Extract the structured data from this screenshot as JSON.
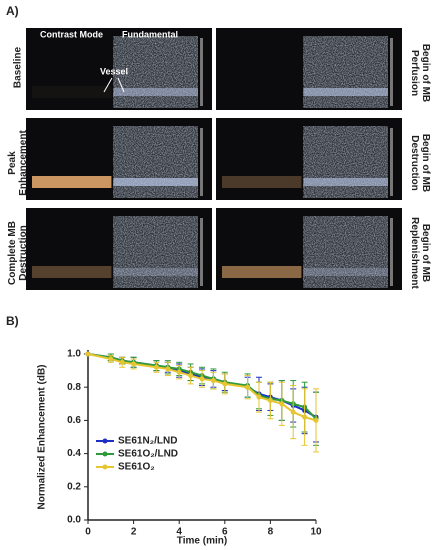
{
  "panel_a": {
    "label": "A)",
    "headers": [
      "Contrast Mode",
      "Fundamental"
    ],
    "annotation": "Vessel",
    "rows": [
      {
        "left": "Baseline",
        "right": "Begin of MB Perfusion"
      },
      {
        "left": "Peak Enhancement",
        "right": "Begin of MB Destruction"
      },
      {
        "left": "Complete MB Destruction",
        "right": "Begin of MB Replenishment"
      }
    ]
  },
  "chart_data": {
    "type": "line",
    "label": "B)",
    "x_label": "Time (min)",
    "y_label": "Normalized Enhancement (dB)",
    "x": [
      0,
      1,
      1.5,
      2,
      3,
      3.5,
      4,
      4.5,
      5,
      5.5,
      6,
      7,
      7.5,
      8,
      8.5,
      9,
      9.5,
      10
    ],
    "series": [
      {
        "name": "SE61N₂/LND",
        "color": "#1c2fc4",
        "values": [
          1.0,
          0.98,
          0.96,
          0.95,
          0.93,
          0.92,
          0.9,
          0.88,
          0.86,
          0.85,
          0.83,
          0.8,
          0.76,
          0.74,
          0.72,
          0.69,
          0.66,
          0.62
        ],
        "errors": [
          0,
          0.02,
          0.02,
          0.03,
          0.03,
          0.03,
          0.04,
          0.04,
          0.05,
          0.05,
          0.05,
          0.06,
          0.1,
          0.08,
          0.12,
          0.1,
          0.14,
          0.15
        ]
      },
      {
        "name": "SE61O₂/LND",
        "color": "#2e9a3a",
        "values": [
          1.0,
          0.98,
          0.96,
          0.95,
          0.93,
          0.92,
          0.91,
          0.89,
          0.87,
          0.85,
          0.83,
          0.81,
          0.75,
          0.73,
          0.72,
          0.7,
          0.68,
          0.61
        ],
        "errors": [
          0,
          0.02,
          0.02,
          0.03,
          0.03,
          0.04,
          0.04,
          0.05,
          0.05,
          0.06,
          0.06,
          0.07,
          0.08,
          0.1,
          0.12,
          0.14,
          0.15,
          0.16
        ]
      },
      {
        "name": "SE61O₂",
        "color": "#e6c531",
        "values": [
          1.0,
          0.97,
          0.95,
          0.94,
          0.92,
          0.91,
          0.89,
          0.87,
          0.85,
          0.84,
          0.82,
          0.8,
          0.74,
          0.72,
          0.7,
          0.65,
          0.62,
          0.6
        ],
        "errors": [
          0,
          0.02,
          0.03,
          0.03,
          0.03,
          0.04,
          0.04,
          0.05,
          0.05,
          0.05,
          0.06,
          0.07,
          0.09,
          0.11,
          0.13,
          0.16,
          0.17,
          0.19
        ]
      }
    ],
    "xlim": [
      0,
      10
    ],
    "xticks": [
      0,
      2,
      4,
      6,
      8,
      10
    ],
    "ylim": [
      0,
      1
    ],
    "yticks": [
      {
        "value": 0,
        "label": "0.0"
      },
      {
        "value": 0.2,
        "label": "0.2"
      },
      {
        "value": 0.4,
        "label": "0.4"
      },
      {
        "value": 0.6,
        "label": "0.6"
      },
      {
        "value": 0.8,
        "label": "0.8"
      },
      {
        "value": 1,
        "label": "1.0"
      }
    ]
  }
}
